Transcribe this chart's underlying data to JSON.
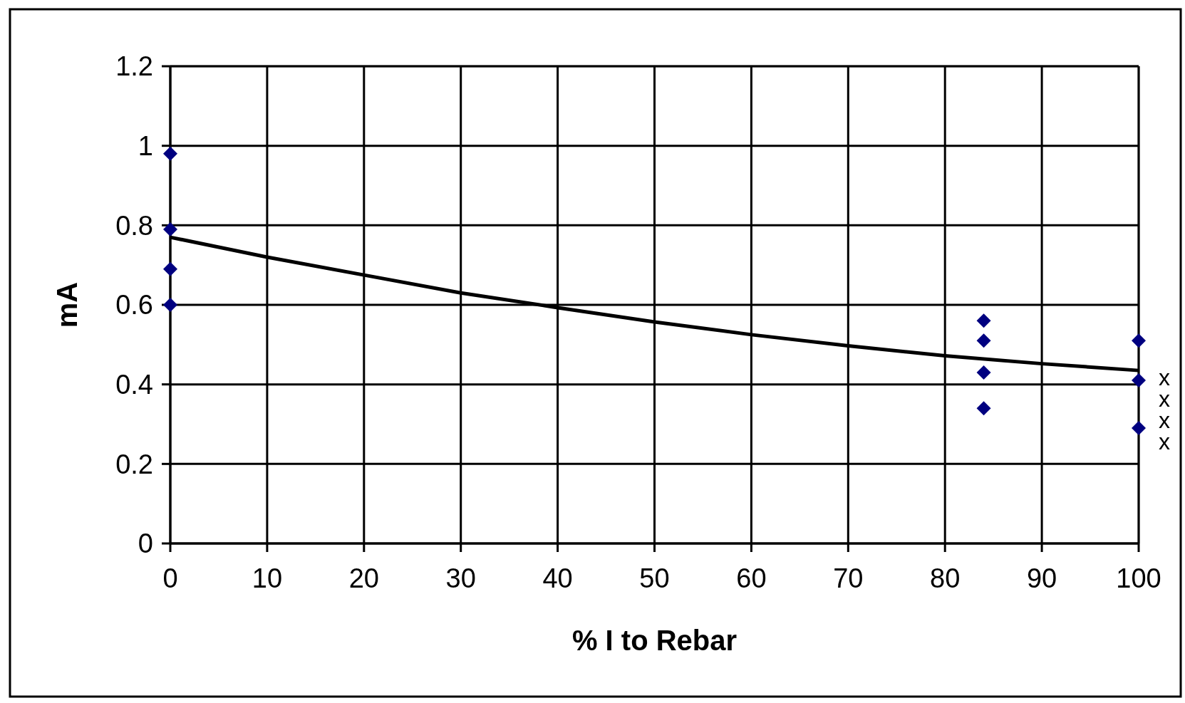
{
  "chart_data": {
    "type": "scatter",
    "xlabel": "% I to Rebar",
    "ylabel": "mA",
    "xlim": [
      0,
      100
    ],
    "ylim": [
      0,
      1.2
    ],
    "xticks": [
      0,
      10,
      20,
      30,
      40,
      50,
      60,
      70,
      80,
      90,
      100
    ],
    "yticks": [
      0,
      {
        "value": 0.2,
        "label": "0.2"
      },
      {
        "value": 0.4,
        "label": "0.4"
      },
      {
        "value": 0.6,
        "label": "0.6"
      },
      {
        "value": 0.8,
        "label": "0.8"
      },
      1,
      {
        "value": 1.2,
        "label": "1.2"
      }
    ],
    "grid": true,
    "series": [
      {
        "type": "scatter",
        "color": "#000080",
        "marker": "diamond",
        "x": [
          0,
          0,
          0,
          0,
          84,
          84,
          84,
          84,
          100,
          100,
          100
        ],
        "values": [
          0.98,
          0.79,
          0.69,
          0.6,
          0.56,
          0.51,
          0.43,
          0.34,
          0.51,
          0.41,
          0.29
        ]
      },
      {
        "type": "line",
        "color": "#000000",
        "marker": "none",
        "line_style": "solid",
        "x": [
          0,
          10,
          20,
          30,
          40,
          50,
          60,
          70,
          80,
          90,
          100
        ],
        "values": [
          0.77,
          0.72,
          0.675,
          0.63,
          0.593,
          0.557,
          0.525,
          0.497,
          0.472,
          0.452,
          0.435
        ]
      }
    ],
    "annotations": [
      "x",
      "x",
      "x",
      "x"
    ]
  }
}
